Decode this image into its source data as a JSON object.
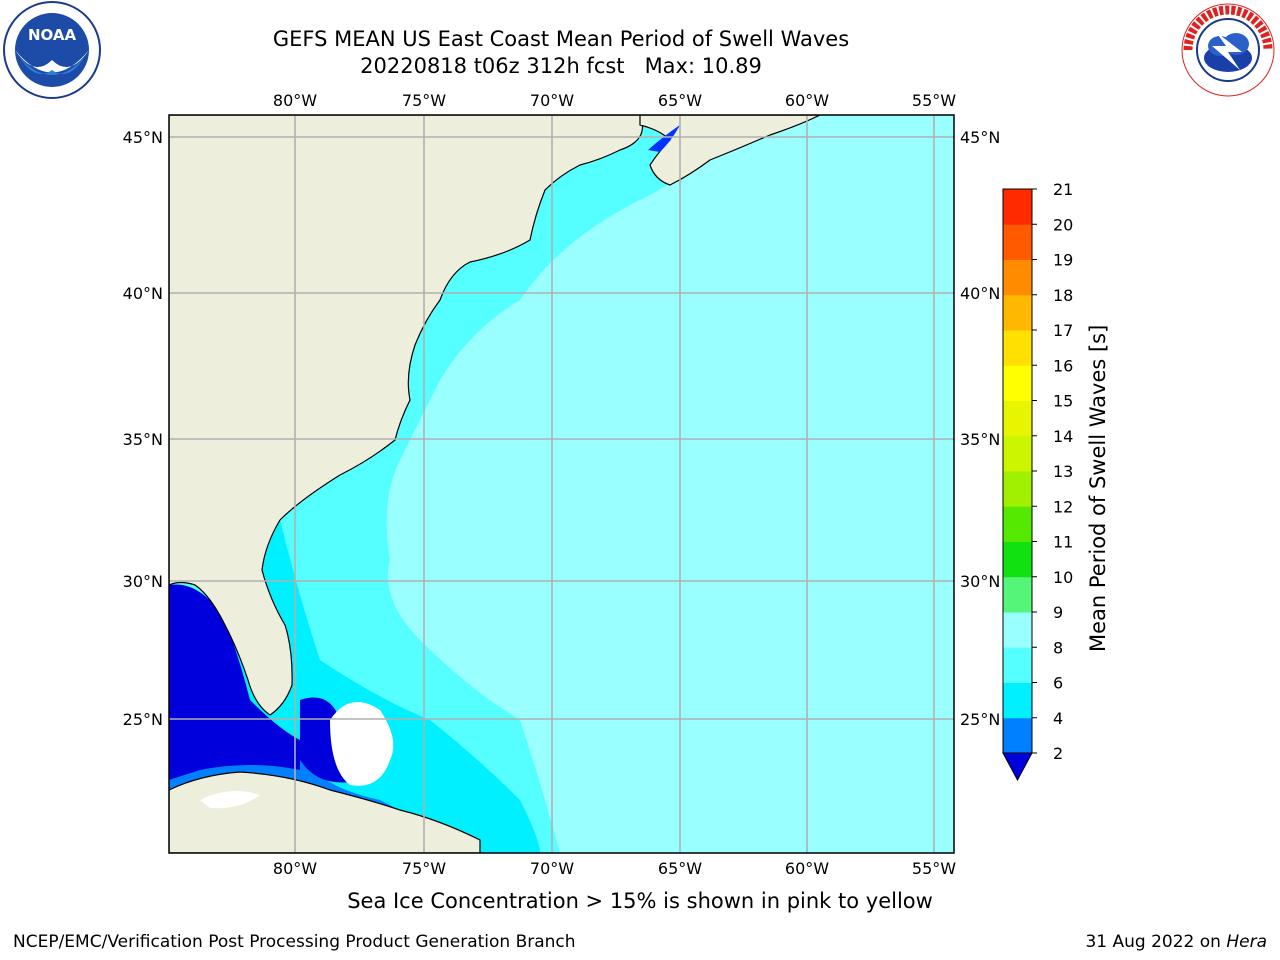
{
  "title": {
    "line1": "GEFS MEAN US East Coast Mean Period of Swell Waves",
    "line2": "20220818 t06z 312h fcst   Max: 10.89"
  },
  "logos": {
    "left": {
      "icon": "noaa-logo",
      "text": "NOAA"
    },
    "right": {
      "icon": "nws-logo",
      "text": "NATIONAL WEATHER SERVICE"
    }
  },
  "map": {
    "lon_ticks": [
      "80°W",
      "75°W",
      "70°W",
      "65°W",
      "60°W",
      "55°W"
    ],
    "lat_ticks": [
      "45°N",
      "40°N",
      "35°N",
      "30°N",
      "25°N"
    ],
    "colors": {
      "land": "#eeeedc",
      "gridline": "#b0b0b0",
      "coastline": "#000000",
      "white_area": "#ffffff"
    }
  },
  "colorbar": {
    "label": "Mean Period of Swell Waves [s]",
    "ticks": [
      "2",
      "4",
      "6",
      "8",
      "9",
      "10",
      "11",
      "12",
      "13",
      "14",
      "15",
      "16",
      "17",
      "18",
      "19",
      "20",
      "21"
    ],
    "colors": [
      "#0033ff",
      "#0080ff",
      "#00f0ff",
      "#55ffff",
      "#99ffff",
      "#55f57a",
      "#11e011",
      "#55e800",
      "#a0f000",
      "#ccf500",
      "#e8f500",
      "#ffff00",
      "#ffe000",
      "#ffb800",
      "#ff8c00",
      "#ff5a00",
      "#ff2a00",
      "#ff0000"
    ],
    "under_color": "#0000dd"
  },
  "caption": "Sea Ice Concentration > 15% is shown in pink to yellow",
  "footer": {
    "left": "NCEP/EMC/Verification Post Processing Product Generation Branch",
    "right_date": "31 Aug 2022 on ",
    "right_host": "Hera"
  }
}
